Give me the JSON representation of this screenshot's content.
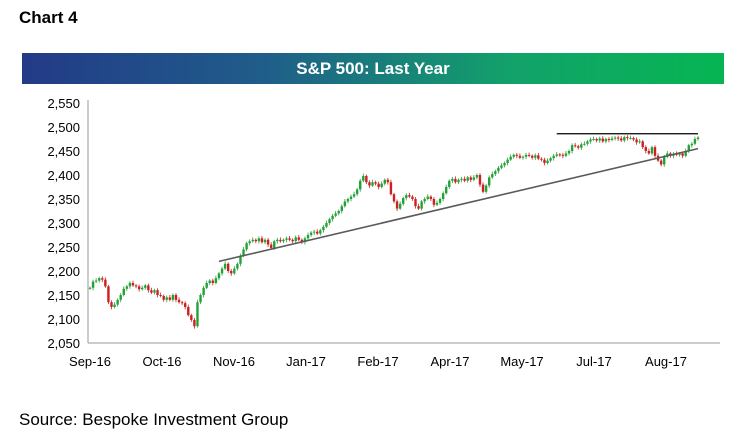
{
  "header": {
    "label": "Chart 4"
  },
  "footer": {
    "source": "Source: Bespoke Investment Group"
  },
  "chart_data": {
    "type": "line",
    "title": "S&P 500: Last Year",
    "xlabel": "",
    "ylabel": "",
    "ylim": [
      2050,
      2550
    ],
    "yticks": [
      "2,050",
      "2,100",
      "2,150",
      "2,200",
      "2,250",
      "2,300",
      "2,350",
      "2,400",
      "2,450",
      "2,500",
      "2,550"
    ],
    "xticks": [
      "Sep-16",
      "Oct-16",
      "Nov-16",
      "Jan-17",
      "Feb-17",
      "Apr-17",
      "May-17",
      "Jul-17",
      "Aug-17"
    ],
    "grid": false,
    "legend": "none",
    "colors": {
      "up": "#22a236",
      "down": "#cc1f1f",
      "trendline": "#000000",
      "title_band_start": "#233a87",
      "title_band_end": "#06b552"
    },
    "series": [
      {
        "values": [
          2165,
          2178,
          2180,
          2185,
          2182,
          2168,
          2135,
          2125,
          2130,
          2140,
          2150,
          2163,
          2168,
          2175,
          2170,
          2168,
          2162,
          2165,
          2170,
          2160,
          2155,
          2160,
          2150,
          2148,
          2140,
          2145,
          2140,
          2150,
          2140,
          2135,
          2133,
          2125,
          2108,
          2098,
          2085,
          2135,
          2150,
          2165,
          2175,
          2180,
          2175,
          2185,
          2195,
          2205,
          2215,
          2200,
          2195,
          2205,
          2215,
          2232,
          2245,
          2258,
          2262,
          2265,
          2262,
          2268,
          2260,
          2265,
          2255,
          2248,
          2262,
          2265,
          2262,
          2265,
          2268,
          2265,
          2262,
          2270,
          2265,
          2260,
          2268,
          2275,
          2280,
          2282,
          2278,
          2285,
          2292,
          2300,
          2308,
          2315,
          2320,
          2325,
          2335,
          2345,
          2350,
          2355,
          2360,
          2370,
          2388,
          2398,
          2385,
          2378,
          2385,
          2382,
          2375,
          2382,
          2390,
          2385,
          2360,
          2345,
          2330,
          2340,
          2352,
          2358,
          2355,
          2350,
          2335,
          2330,
          2345,
          2350,
          2355,
          2350,
          2338,
          2342,
          2350,
          2362,
          2375,
          2388,
          2392,
          2385,
          2390,
          2392,
          2388,
          2395,
          2390,
          2395,
          2400,
          2380,
          2365,
          2378,
          2395,
          2402,
          2408,
          2415,
          2420,
          2425,
          2432,
          2438,
          2442,
          2440,
          2436,
          2438,
          2442,
          2440,
          2436,
          2441,
          2434,
          2432,
          2425,
          2430,
          2435,
          2440,
          2443,
          2442,
          2440,
          2445,
          2450,
          2462,
          2460,
          2457,
          2464,
          2465,
          2470,
          2474,
          2475,
          2472,
          2476,
          2470,
          2475,
          2473,
          2476,
          2478,
          2476,
          2472,
          2479,
          2477,
          2477,
          2474,
          2468,
          2470,
          2458,
          2450,
          2445,
          2458,
          2440,
          2430,
          2422,
          2438,
          2445,
          2440,
          2444,
          2442,
          2445,
          2440,
          2450,
          2462,
          2465,
          2475,
          2478
        ]
      }
    ],
    "trendlines": [
      {
        "type": "support",
        "from": {
          "index": 42,
          "value": 2220
        },
        "to": {
          "index": 198,
          "value": 2455
        }
      },
      {
        "type": "resistance",
        "from": {
          "index": 152,
          "value": 2486
        },
        "to": {
          "index": 198,
          "value": 2486
        }
      }
    ]
  }
}
